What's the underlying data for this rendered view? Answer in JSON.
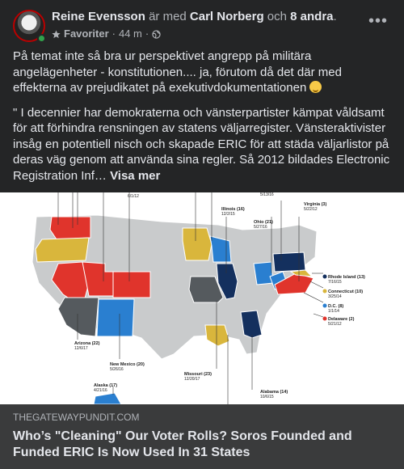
{
  "header": {
    "author": "Reine Evensson",
    "with_text": "är med",
    "tagged": "Carl Norberg",
    "and_text": "och",
    "others": "8 andra",
    "period": ".",
    "favorites_label": "Favoriter",
    "time": "44 m",
    "separator": "·"
  },
  "post": {
    "paragraph1": "På temat inte så bra ur perspektivet angrepp på militära angelägenheter -  konstitutionen.... ja, förutom då det där med effekterna av prejudikatet på exekutivdokumentationen",
    "paragraph2": "\" I decennier har demokraterna och vänsterpartister kämpat våldsamt för att förhindra rensningen av statens väljarregister. Vänsteraktivister insåg en potentiell nisch och skapade ERIC för att städa väljarlistor på deras väg genom att använda sina regler. Så 2012 bildades Electronic Registration Inf…",
    "see_more": "Visa mer"
  },
  "map_labels": {
    "top_left_date": "6/1/12",
    "top_date": "5/13/16",
    "illinois": "Illinois (16)",
    "illinois_date": "12/2/15",
    "ohio": "Ohio (21)",
    "ohio_date": "5/27/16",
    "virginia": "Virginia (3)",
    "virginia_date": "5/22/12",
    "rhode_island": "Rhode Island (13)",
    "rhode_island_date": "7/16/15",
    "connecticut": "Connecticut (10)",
    "connecticut_date": "3/25/14",
    "dc": "D.C. (8)",
    "dc_date": "1/1/14",
    "delaware": "Delaware (2)",
    "delaware_date": "5/21/12",
    "arizona": "Arizona (22)",
    "arizona_date": "12/6/17",
    "new_mexico": "New Mexico (20)",
    "new_mexico_date": "5/26/16",
    "missouri": "Missouri (23)",
    "missouri_date": "12/20/17",
    "alabama": "Alabama (14)",
    "alabama_date": "10/6/15",
    "alaska": "Alaska (17)",
    "alaska_date": "4/21/16"
  },
  "link": {
    "domain": "THEGATEWAYPUNDIT.COM",
    "title": "Who’s \"Cleaning\" Our Voter Rolls? Soros Founded and Funded ERIC Is Now Used In 31 States"
  },
  "colors": {
    "background": "#242526",
    "footer": "#3a3b3c",
    "red": "#e0342c",
    "blue": "#2a7fd0",
    "navy": "#14305e",
    "yellow": "#d9b63c",
    "gray": "#555a5e",
    "base": "#c9cbcc"
  }
}
